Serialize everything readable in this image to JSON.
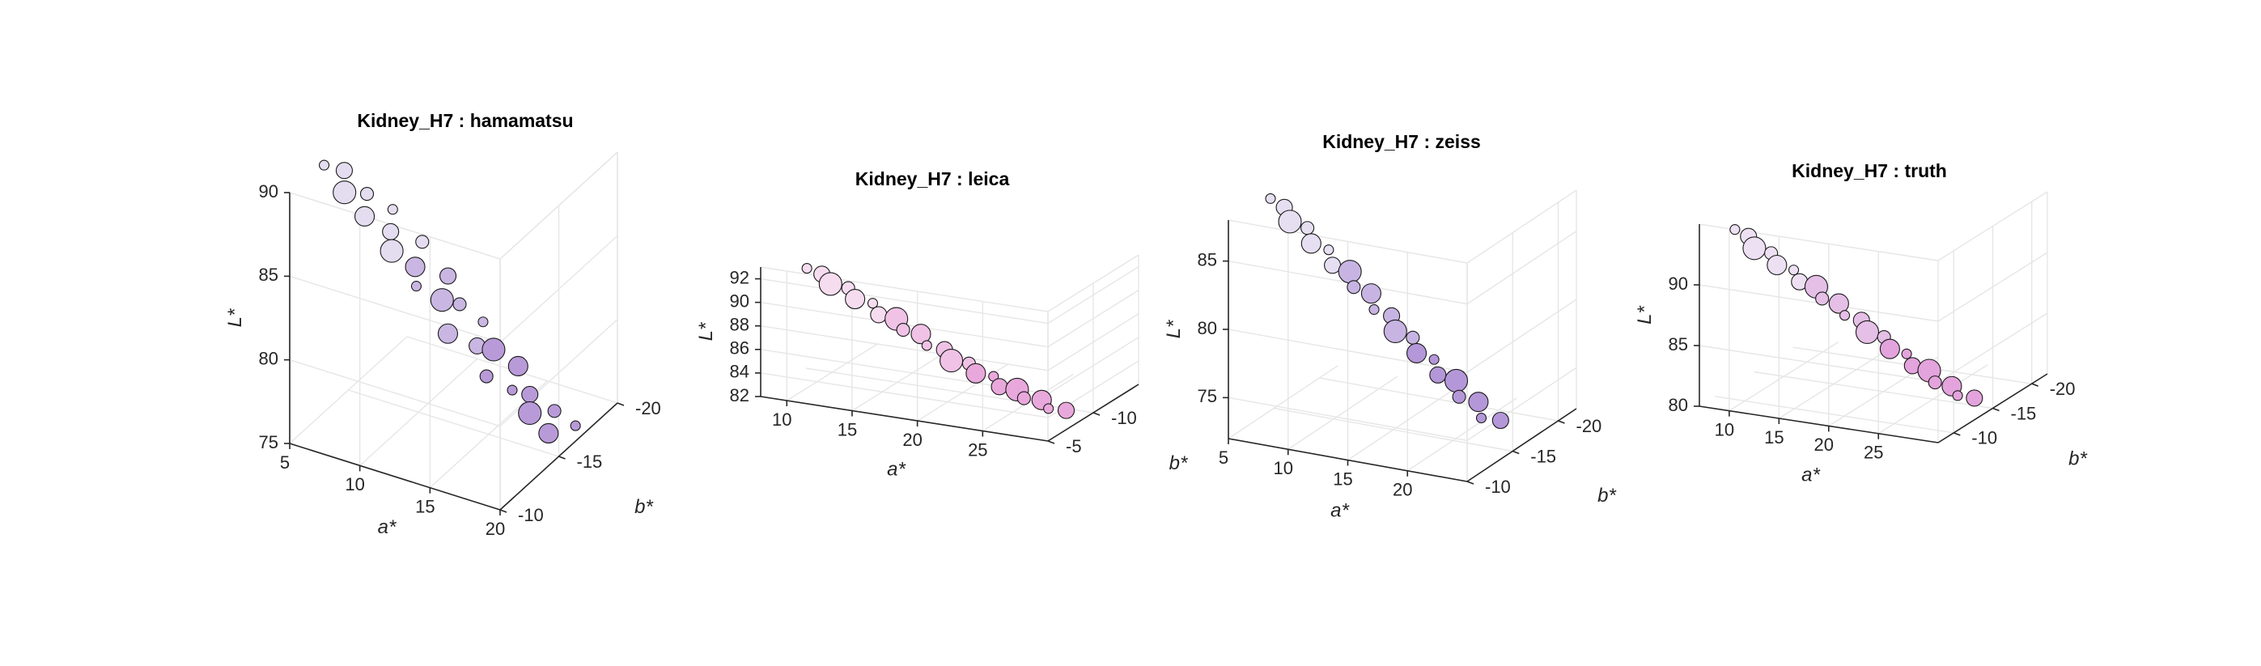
{
  "chart_data": [
    {
      "type": "scatter3d",
      "title": "Kidney_H7 : hamamatsu",
      "xlabel": "a*",
      "ylabel": "b*",
      "zlabel": "L*",
      "xlim": [
        5,
        20
      ],
      "ylim": [
        -20,
        -10
      ],
      "zlim": [
        75,
        90
      ],
      "xticks": [
        5,
        10,
        15,
        20
      ],
      "yticks": [
        -20,
        -15,
        -10
      ],
      "zticks": [
        75,
        80,
        85,
        90
      ],
      "grid": true,
      "colors": [
        "#e4dcef",
        "#c9b6e2",
        "#b89ad8"
      ],
      "points": [
        [
          6.2,
          -11.5,
          91.0
        ],
        [
          6.8,
          -12.5,
          90.2
        ],
        [
          7.4,
          -11.8,
          89.5
        ],
        [
          8.0,
          -13.0,
          88.8
        ],
        [
          8.5,
          -12.2,
          88.1
        ],
        [
          9.0,
          -14.0,
          87.5
        ],
        [
          9.6,
          -13.1,
          86.9
        ],
        [
          10.1,
          -12.6,
          86.2
        ],
        [
          10.6,
          -14.6,
          85.6
        ],
        [
          11.1,
          -13.4,
          85.0
        ],
        [
          11.6,
          -12.9,
          84.3
        ],
        [
          12.1,
          -15.0,
          83.7
        ],
        [
          12.6,
          -13.9,
          83.1
        ],
        [
          13.1,
          -14.8,
          82.4
        ],
        [
          13.6,
          -13.2,
          81.8
        ],
        [
          14.1,
          -15.6,
          81.1
        ],
        [
          14.6,
          -14.5,
          80.5
        ],
        [
          15.1,
          -15.3,
          79.9
        ],
        [
          15.6,
          -14.1,
          79.2
        ],
        [
          16.1,
          -16.2,
          78.6
        ],
        [
          16.6,
          -15.1,
          78.0
        ],
        [
          17.1,
          -16.0,
          77.3
        ],
        [
          17.6,
          -15.4,
          76.7
        ],
        [
          18.1,
          -16.9,
          76.0
        ],
        [
          18.6,
          -15.8,
          75.5
        ],
        [
          19.1,
          -17.5,
          75.0
        ]
      ]
    },
    {
      "type": "scatter3d",
      "title": "Kidney_H7 : leica",
      "xlabel": "a*",
      "ylabel": "b*",
      "zlabel": "L*",
      "xlim": [
        8,
        30
      ],
      "ylim": [
        -15,
        -5
      ],
      "zlim": [
        82,
        93
      ],
      "xticks": [
        10,
        15,
        20,
        25
      ],
      "yticks": [
        -10,
        -5
      ],
      "zticks": [
        82,
        84,
        86,
        88,
        90,
        92
      ],
      "grid": true,
      "colors": [
        "#f6dcef",
        "#f0c2e6",
        "#e9a8dc"
      ],
      "points": [
        [
          10.5,
          -6.5,
          92.6
        ],
        [
          11.3,
          -7.0,
          92.0
        ],
        [
          12.1,
          -6.8,
          91.4
        ],
        [
          12.9,
          -7.6,
          90.8
        ],
        [
          13.7,
          -7.2,
          90.2
        ],
        [
          14.5,
          -8.0,
          89.6
        ],
        [
          15.3,
          -7.5,
          89.0
        ],
        [
          16.1,
          -8.3,
          88.4
        ],
        [
          16.9,
          -7.9,
          87.8
        ],
        [
          17.7,
          -8.7,
          87.2
        ],
        [
          18.5,
          -8.2,
          86.6
        ],
        [
          19.3,
          -9.0,
          86.0
        ],
        [
          20.1,
          -8.6,
          85.4
        ],
        [
          20.9,
          -9.4,
          84.9
        ],
        [
          21.7,
          -9.0,
          84.4
        ],
        [
          22.5,
          -9.8,
          83.9
        ],
        [
          23.3,
          -9.3,
          83.4
        ],
        [
          24.1,
          -10.1,
          82.9
        ],
        [
          24.9,
          -9.7,
          82.5
        ],
        [
          25.7,
          -10.5,
          82.1
        ],
        [
          26.5,
          -10.1,
          81.7
        ],
        [
          27.3,
          -10.9,
          81.3
        ]
      ]
    },
    {
      "type": "scatter3d",
      "title": "Kidney_H7 : zeiss",
      "xlabel": "a*",
      "ylabel": "b*",
      "zlabel": "L*",
      "xlim": [
        5,
        25
      ],
      "ylim": [
        -22,
        -10
      ],
      "zlim": [
        72,
        88
      ],
      "xticks": [
        5,
        10,
        15,
        20
      ],
      "yticks": [
        -20,
        -15,
        -10
      ],
      "zticks": [
        75,
        80,
        85
      ],
      "grid": true,
      "colors": [
        "#e6dff2",
        "#c7b4e3",
        "#b497d8"
      ],
      "points": [
        [
          7.0,
          -12.0,
          89.0
        ],
        [
          7.7,
          -12.6,
          88.2
        ],
        [
          8.4,
          -12.3,
          87.4
        ],
        [
          9.1,
          -13.3,
          86.6
        ],
        [
          9.8,
          -12.8,
          85.8
        ],
        [
          10.5,
          -13.8,
          85.0
        ],
        [
          11.2,
          -13.3,
          84.2
        ],
        [
          11.9,
          -14.3,
          83.4
        ],
        [
          12.6,
          -13.8,
          82.6
        ],
        [
          13.3,
          -14.8,
          81.8
        ],
        [
          14.0,
          -14.2,
          81.0
        ],
        [
          14.7,
          -15.2,
          80.2
        ],
        [
          15.4,
          -14.7,
          79.4
        ],
        [
          16.1,
          -15.7,
          78.6
        ],
        [
          16.8,
          -15.2,
          77.8
        ],
        [
          17.5,
          -16.2,
          77.0
        ],
        [
          18.2,
          -15.7,
          76.2
        ],
        [
          18.9,
          -16.8,
          75.4
        ],
        [
          19.6,
          -16.2,
          74.6
        ],
        [
          20.3,
          -17.4,
          73.8
        ],
        [
          21.0,
          -16.8,
          73.0
        ],
        [
          21.7,
          -18.0,
          72.4
        ]
      ]
    },
    {
      "type": "scatter3d",
      "title": "Kidney_H7 : truth",
      "xlabel": "a*",
      "ylabel": "b*",
      "zlabel": "L*",
      "xlim": [
        7,
        31
      ],
      "ylim": [
        -22,
        -8
      ],
      "zlim": [
        80,
        95
      ],
      "xticks": [
        10,
        15,
        20,
        25
      ],
      "yticks": [
        -20,
        -15,
        -10
      ],
      "zticks": [
        80,
        85,
        90
      ],
      "grid": true,
      "colors": [
        "#ece0f2",
        "#e5bfe6",
        "#e3a3dc"
      ],
      "points": [
        [
          9.0,
          -10.0,
          94.0
        ],
        [
          9.9,
          -10.6,
          93.3
        ],
        [
          10.8,
          -10.2,
          92.6
        ],
        [
          11.7,
          -11.2,
          91.9
        ],
        [
          12.6,
          -10.8,
          91.2
        ],
        [
          13.5,
          -11.8,
          90.5
        ],
        [
          14.4,
          -11.4,
          89.8
        ],
        [
          15.3,
          -12.4,
          89.1
        ],
        [
          16.2,
          -12.0,
          88.4
        ],
        [
          17.1,
          -13.0,
          87.7
        ],
        [
          18.0,
          -12.6,
          87.0
        ],
        [
          18.9,
          -13.6,
          86.3
        ],
        [
          19.8,
          -13.2,
          85.6
        ],
        [
          20.7,
          -14.2,
          84.9
        ],
        [
          21.6,
          -13.8,
          84.2
        ],
        [
          22.5,
          -14.8,
          83.5
        ],
        [
          23.4,
          -14.4,
          82.8
        ],
        [
          24.3,
          -15.4,
          82.1
        ],
        [
          25.2,
          -15.0,
          81.4
        ],
        [
          26.1,
          -16.0,
          80.8
        ],
        [
          27.0,
          -15.6,
          80.3
        ],
        [
          27.9,
          -16.6,
          79.8
        ]
      ]
    }
  ]
}
